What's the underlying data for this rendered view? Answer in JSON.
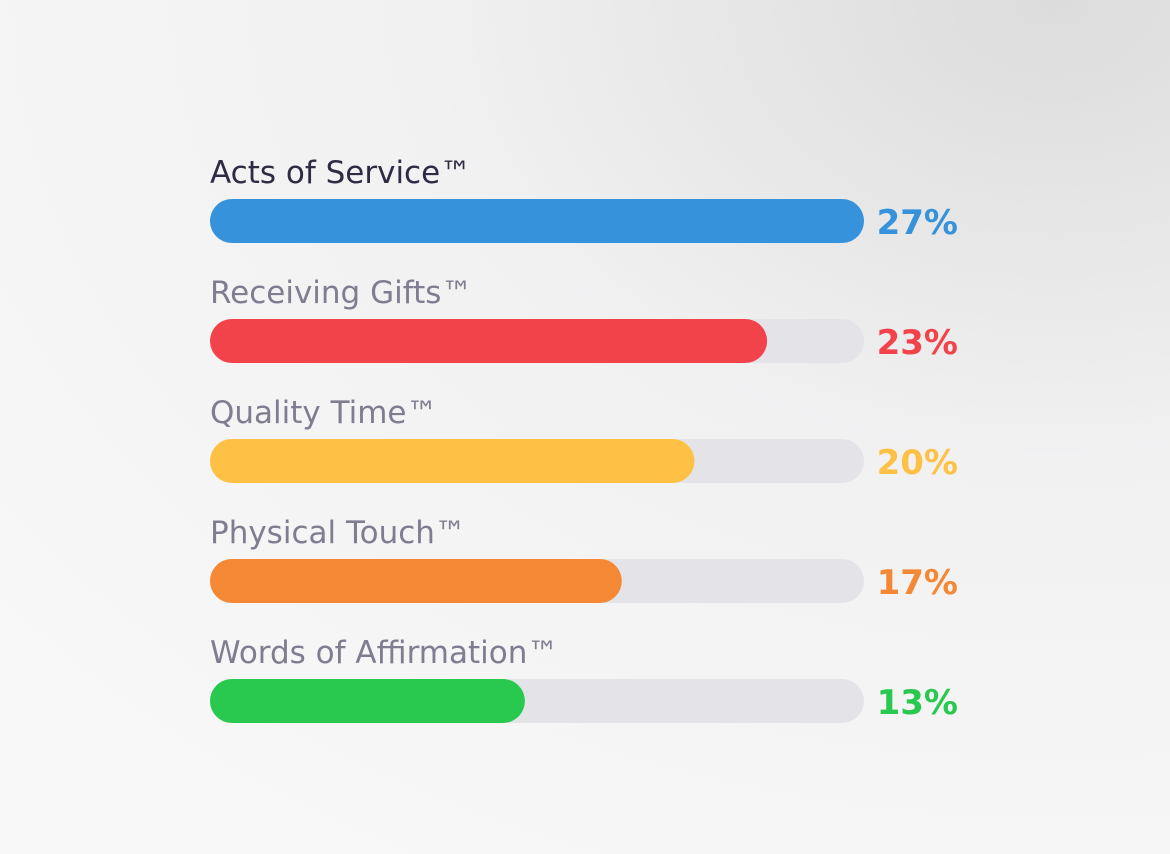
{
  "chart_data": {
    "type": "bar",
    "orientation": "horizontal",
    "categories": [
      "Acts of Service™",
      "Receiving Gifts™",
      "Quality Time™",
      "Physical Touch™",
      "Words of Affirmation™"
    ],
    "values": [
      27,
      23,
      20,
      17,
      13
    ],
    "value_labels": [
      "27%",
      "23%",
      "20%",
      "17%",
      "13%"
    ],
    "colors": [
      "#3592db",
      "#f2434b",
      "#fec146",
      "#f48835",
      "#29c84f"
    ],
    "xlim": [
      0,
      27
    ]
  }
}
